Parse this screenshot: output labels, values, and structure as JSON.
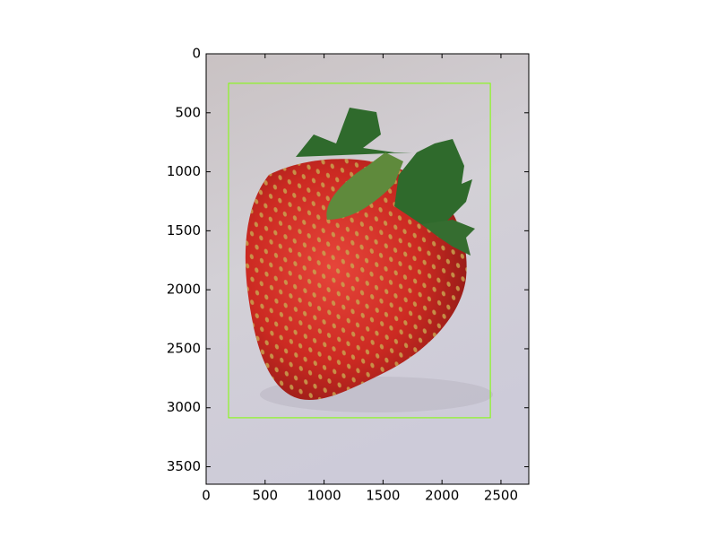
{
  "chart_data": {
    "type": "image",
    "xlim": [
      0,
      2736
    ],
    "ylim": [
      3648,
      0
    ],
    "xticks": [
      0,
      500,
      1000,
      1500,
      2000,
      2500
    ],
    "yticks": [
      0,
      500,
      1000,
      1500,
      2000,
      2500,
      3000,
      3500
    ],
    "box": {
      "x0": 190,
      "y0": 250,
      "x1": 2410,
      "y1": 3085,
      "color": "#7fff00"
    }
  }
}
